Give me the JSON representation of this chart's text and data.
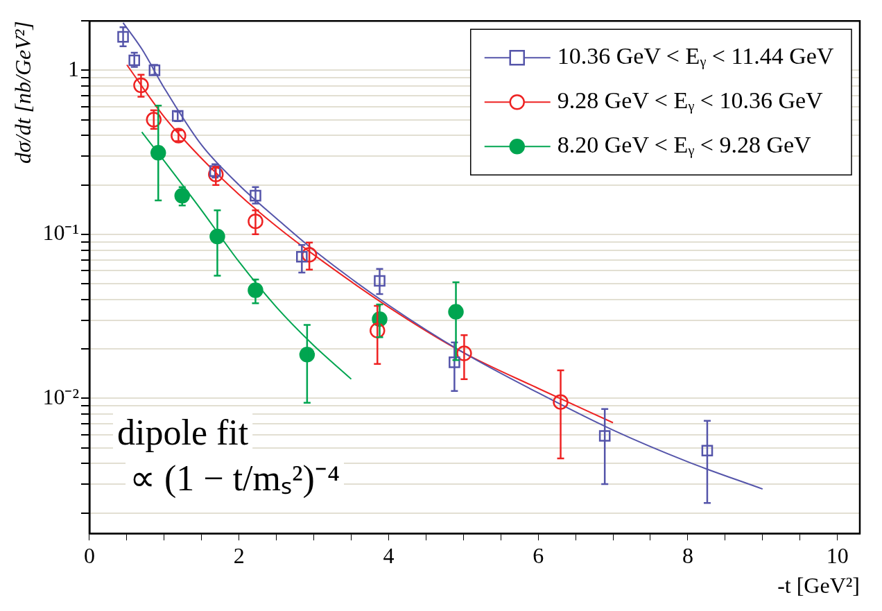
{
  "chart_data": {
    "type": "scatter",
    "xlabel": "-t [GeV²]",
    "ylabel": "dσ/dt [nb/GeV²]",
    "xlim": [
      0,
      10.3
    ],
    "ylim": [
      0.0015,
      2
    ],
    "log": "y",
    "grid": "y",
    "legend": "top right",
    "xticks": [
      0,
      {
        "value": 0.5,
        "label": null
      },
      {
        "value": 1,
        "label": null
      },
      {
        "value": 1.5,
        "label": null
      },
      2,
      {
        "value": 2.5,
        "label": null
      },
      {
        "value": 3,
        "label": null
      },
      {
        "value": 3.5,
        "label": null
      },
      4,
      {
        "value": 4.5,
        "label": null
      },
      {
        "value": 5,
        "label": null
      },
      {
        "value": 5.5,
        "label": null
      },
      6,
      {
        "value": 6.5,
        "label": null
      },
      {
        "value": 7,
        "label": null
      },
      {
        "value": 7.5,
        "label": null
      },
      8,
      {
        "value": 8.5,
        "label": null
      },
      {
        "value": 9,
        "label": null
      },
      {
        "value": 9.5,
        "label": null
      },
      10
    ],
    "yticks": [
      {
        "value": 0.002,
        "label": null
      },
      {
        "value": 0.003,
        "label": null
      },
      {
        "value": 0.004,
        "label": null
      },
      {
        "value": 0.005,
        "label": null
      },
      {
        "value": 0.006,
        "label": null
      },
      {
        "value": 0.007,
        "label": null
      },
      {
        "value": 0.008,
        "label": null
      },
      {
        "value": 0.009,
        "label": null
      },
      {
        "value": 0.01,
        "label": "10⁻²"
      },
      {
        "value": 0.02,
        "label": null
      },
      {
        "value": 0.03,
        "label": null
      },
      {
        "value": 0.04,
        "label": null
      },
      {
        "value": 0.05,
        "label": null
      },
      {
        "value": 0.06,
        "label": null
      },
      {
        "value": 0.07,
        "label": null
      },
      {
        "value": 0.08,
        "label": null
      },
      {
        "value": 0.09,
        "label": null
      },
      {
        "value": 0.1,
        "label": "10⁻¹"
      },
      {
        "value": 0.2,
        "label": null
      },
      {
        "value": 0.3,
        "label": null
      },
      {
        "value": 0.4,
        "label": null
      },
      {
        "value": 0.5,
        "label": null
      },
      {
        "value": 0.6,
        "label": null
      },
      {
        "value": 0.7,
        "label": null
      },
      {
        "value": 0.8,
        "label": null
      },
      {
        "value": 0.9,
        "label": null
      },
      1,
      {
        "value": 2,
        "label": null
      }
    ],
    "annotations": [
      "dipole fit",
      "∝ (1 − t/mₛ²)⁻⁴"
    ],
    "series": [
      {
        "name": "10.36 GeV < Eᵧ < 11.44 GeV",
        "color": "#5555aa",
        "marker": "square",
        "x": [
          0.45,
          0.6,
          0.87,
          1.18,
          1.68,
          2.22,
          2.84,
          3.88,
          4.88,
          6.89,
          8.26
        ],
        "values": [
          1.6,
          1.15,
          1.0,
          0.527,
          0.243,
          0.172,
          0.073,
          0.052,
          0.0166,
          0.0059,
          0.0048
        ],
        "errors": [
          [
            1.4,
            1.83
          ],
          [
            1.05,
            1.28
          ],
          [
            0.94,
            1.08
          ],
          [
            0.49,
            0.56
          ],
          [
            0.222,
            0.268
          ],
          [
            0.154,
            0.194
          ],
          [
            0.0585,
            0.086
          ],
          [
            0.0432,
            0.0615
          ],
          [
            0.0111,
            0.0219
          ],
          [
            0.003,
            0.0086
          ],
          [
            0.0023,
            0.0073
          ]
        ]
      },
      {
        "name": "9.28 GeV < Eᵧ < 10.36 GeV",
        "color": "#ee2222",
        "marker": "circle",
        "x": [
          0.69,
          0.86,
          1.19,
          1.69,
          2.22,
          2.94,
          3.85,
          5.01,
          6.3
        ],
        "values": [
          0.81,
          0.5,
          0.4,
          0.232,
          0.12,
          0.075,
          0.0259,
          0.0188,
          0.0095
        ],
        "errors": [
          [
            0.69,
            0.94
          ],
          [
            0.44,
            0.57
          ],
          [
            0.37,
            0.43
          ],
          [
            0.2,
            0.258
          ],
          [
            0.1,
            0.14
          ],
          [
            0.061,
            0.089
          ],
          [
            0.0162,
            0.0366
          ],
          [
            0.0131,
            0.0243
          ],
          [
            0.0043,
            0.0148
          ]
        ]
      },
      {
        "name": "8.20 GeV < Eᵧ < 9.28 GeV",
        "color": "#00a550",
        "marker": "circle",
        "x": [
          0.92,
          1.24,
          1.71,
          2.22,
          2.91,
          3.88,
          4.9
        ],
        "values": [
          0.314,
          0.172,
          0.097,
          0.0456,
          0.0185,
          0.0304,
          0.0337
        ],
        "errors": [
          [
            0.161,
            0.61
          ],
          [
            0.15,
            0.194
          ],
          [
            0.056,
            0.14
          ],
          [
            0.038,
            0.053
          ],
          [
            0.0094,
            0.028
          ],
          [
            0.0236,
            0.0374
          ],
          [
            0.0171,
            0.051
          ]
        ]
      },
      {
        "type": "line",
        "color": "#5555aa",
        "x": [
          0.45,
          0.7,
          1,
          1.5,
          2,
          2.5,
          3,
          4,
          5,
          6,
          7,
          8,
          9
        ],
        "values": [
          1.95,
          1.35,
          0.78,
          0.35,
          0.2,
          0.125,
          0.08,
          0.037,
          0.019,
          0.0108,
          0.0064,
          0.0041,
          0.0028
        ]
      },
      {
        "type": "line",
        "color": "#ee2222",
        "x": [
          0.5,
          1,
          1.5,
          2,
          2.5,
          3,
          4,
          5,
          6,
          7
        ],
        "values": [
          1.08,
          0.52,
          0.29,
          0.175,
          0.112,
          0.075,
          0.036,
          0.019,
          0.0115,
          0.0071
        ]
      },
      {
        "type": "line",
        "color": "#00a550",
        "x": [
          0.7,
          1,
          1.5,
          2,
          2.5,
          3,
          3.5
        ],
        "values": [
          0.42,
          0.28,
          0.14,
          0.068,
          0.036,
          0.021,
          0.0131
        ]
      }
    ]
  }
}
